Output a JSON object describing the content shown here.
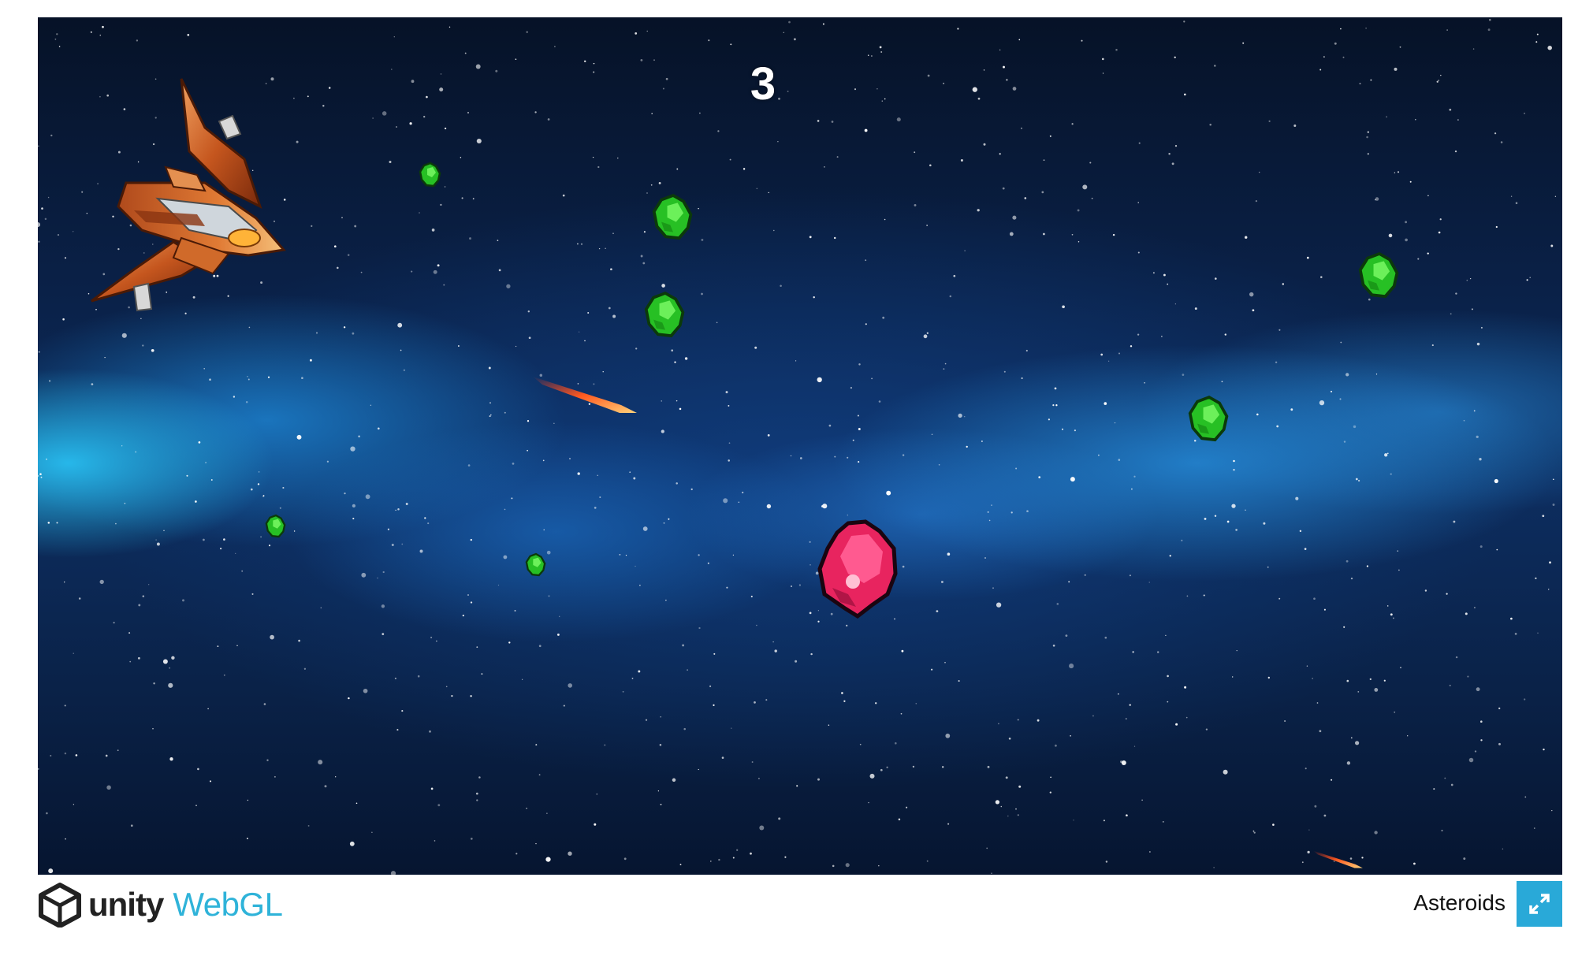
{
  "game": {
    "score": "3",
    "title": "Asteroids"
  },
  "footer": {
    "brand_unity": "unity",
    "brand_webgl": "WebGL",
    "fullscreen_icon": "fullscreen-expand-icon"
  },
  "colors": {
    "asteroid_green": "#2ed12a",
    "asteroid_pink": "#e8245f",
    "ship_orange": "#c7642a",
    "accent_blue": "#29a9d8",
    "webgl_text": "#2fb3d9"
  }
}
